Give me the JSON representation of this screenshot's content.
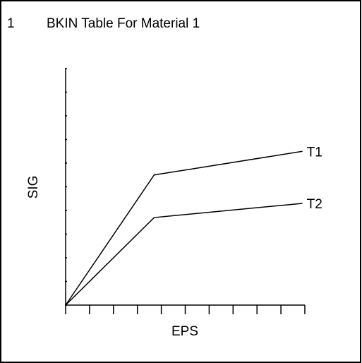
{
  "window_number": "1",
  "chart_data": {
    "type": "line",
    "title": "BKIN Table For Material 1",
    "xlabel": "EPS",
    "ylabel": "SIG",
    "xlim": [
      0,
      10
    ],
    "ylim": [
      0,
      10
    ],
    "xticks": [
      0,
      1,
      2,
      3,
      4,
      5,
      6,
      7,
      8,
      9,
      10
    ],
    "yticks": [
      0,
      1,
      2,
      3,
      4,
      5,
      6,
      7,
      8,
      9,
      10
    ],
    "series": [
      {
        "name": "T1",
        "color": "#000000",
        "x": [
          0,
          3.7,
          9.9
        ],
        "values": [
          0,
          5.5,
          6.5
        ]
      },
      {
        "name": "T2",
        "color": "#000000",
        "x": [
          0,
          3.7,
          9.9
        ],
        "values": [
          0,
          3.7,
          4.3
        ]
      }
    ]
  }
}
